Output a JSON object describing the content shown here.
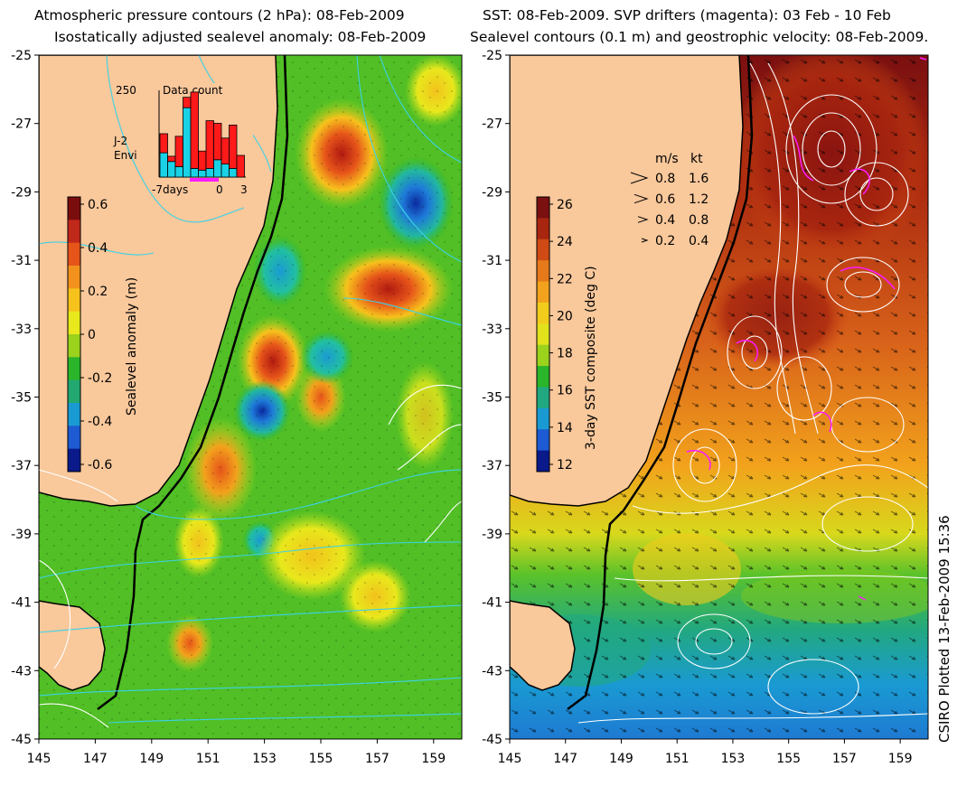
{
  "left_panel": {
    "title_line1": "Atmospheric pressure contours (2 hPa): 08-Feb-2009",
    "title_line2": "Isostatically adjusted sealevel anomaly: 08-Feb-2009",
    "x_ticks": [
      "145",
      "147",
      "149",
      "151",
      "153",
      "155",
      "157",
      "159"
    ],
    "y_ticks": [
      "-25",
      "-27",
      "-29",
      "-31",
      "-33",
      "-35",
      "-37",
      "-39",
      "-41",
      "-43",
      "-45"
    ],
    "colorbar": {
      "label": "Sealevel anomaly (m)",
      "ticks": [
        "0.6",
        "0.4",
        "0.2",
        "0",
        "-0.2",
        "-0.4",
        "-0.6"
      ],
      "colors": [
        "#7a0d0d",
        "#c0281a",
        "#e6541a",
        "#f2921c",
        "#f7c21c",
        "#e8e81c",
        "#9ad21c",
        "#2ab52a",
        "#22a870",
        "#1a9ad2",
        "#1e5ad2",
        "#0a1a8a"
      ]
    },
    "inset": {
      "title": "Data count",
      "y_label": "250",
      "x_labels": [
        "-7days",
        "0",
        "3"
      ],
      "legend": [
        {
          "label": "J-2",
          "color": "#ff1a1a"
        },
        {
          "label": "Envi",
          "color": "#1ad2e6"
        }
      ],
      "bars": [
        {
          "j2": 0.22,
          "envi": 0.28
        },
        {
          "j2": 0.06,
          "envi": 0.18
        },
        {
          "j2": 0.35,
          "envi": 0.12
        },
        {
          "j2": 0.12,
          "envi": 0.8
        },
        {
          "j2": 0.88,
          "envi": 0.1
        },
        {
          "j2": 0.22,
          "envi": 0.08
        },
        {
          "j2": 0.55,
          "envi": 0.1
        },
        {
          "j2": 0.42,
          "envi": 0.2
        },
        {
          "j2": 0.3,
          "envi": 0.15
        },
        {
          "j2": 0.5,
          "envi": 0.1
        },
        {
          "j2": 0.25,
          "envi": 0.0
        }
      ]
    }
  },
  "right_panel": {
    "title_line1": "SST: 08-Feb-2009. SVP drifters (magenta): 03 Feb - 10 Feb",
    "title_line2": "Sealevel contours (0.1 m) and geostrophic velocity: 08-Feb-2009.",
    "x_ticks": [
      "145",
      "147",
      "149",
      "151",
      "153",
      "155",
      "157",
      "159"
    ],
    "y_ticks": [
      "-25",
      "-27",
      "-29",
      "-31",
      "-33",
      "-35",
      "-37",
      "-39",
      "-41",
      "-43",
      "-45"
    ],
    "colorbar": {
      "label": "3-day SST composite (deg C)",
      "ticks": [
        "26",
        "24",
        "22",
        "20",
        "18",
        "16",
        "14",
        "12"
      ],
      "colors": [
        "#7a1010",
        "#a8260f",
        "#cf4a14",
        "#e67a1a",
        "#f2a21c",
        "#f2cc1c",
        "#e2e21c",
        "#9ad21c",
        "#2ab52a",
        "#22a880",
        "#1a9ad2",
        "#1e5ad2",
        "#0a1a8a"
      ]
    },
    "velocity_legend": {
      "header_ms": "m/s",
      "header_kt": "kt",
      "rows": [
        {
          "ms": "0.8",
          "kt": "1.6"
        },
        {
          "ms": "0.6",
          "kt": "1.2"
        },
        {
          "ms": "0.4",
          "kt": "0.8"
        },
        {
          "ms": "0.2",
          "kt": "0.4"
        }
      ]
    }
  },
  "credit": "CSIRO Plotted 13-Feb-2009 15:36",
  "colors": {
    "land": "#f9c89b",
    "coast": "#000000",
    "pressure_contour": "#3cd2e6",
    "sealevel_contour": "#ffffff",
    "drifter": "#ff1aff"
  }
}
